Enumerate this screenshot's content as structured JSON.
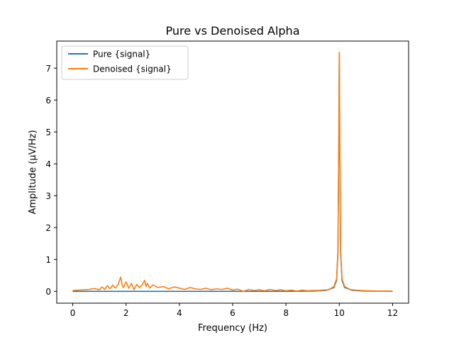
{
  "chart_data": {
    "type": "line",
    "title": "Pure vs Denoised Alpha",
    "xlabel": "Frequency (Hz)",
    "ylabel": "Amplitude (μV/Hz)",
    "xlim": [
      -0.6,
      12.6
    ],
    "ylim": [
      -0.37,
      7.85
    ],
    "xticks": [
      0,
      2,
      4,
      6,
      8,
      10,
      12
    ],
    "yticks": [
      0,
      1,
      2,
      3,
      4,
      5,
      6,
      7
    ],
    "grid": false,
    "legend": "upper left",
    "series": [
      {
        "name": "Pure {signal}",
        "color": "#1f77b4",
        "x": [
          0,
          1,
          2,
          3,
          4,
          5,
          6,
          7,
          8,
          9,
          9.5,
          9.8,
          9.9,
          9.95,
          9.98,
          10.0,
          10.02,
          10.05,
          10.1,
          10.2,
          10.5,
          11,
          12
        ],
        "y": [
          0,
          0,
          0,
          0,
          0,
          0,
          0,
          0,
          0,
          0.01,
          0.03,
          0.12,
          0.35,
          1.2,
          4.5,
          7.45,
          4.5,
          1.2,
          0.35,
          0.12,
          0.03,
          0.01,
          0
        ]
      },
      {
        "name": "Denoised {signal}",
        "color": "#ff7f0e",
        "x": [
          0,
          0.2,
          0.4,
          0.6,
          0.8,
          1.0,
          1.1,
          1.2,
          1.3,
          1.4,
          1.5,
          1.6,
          1.7,
          1.8,
          1.85,
          1.9,
          2.0,
          2.1,
          2.2,
          2.3,
          2.4,
          2.5,
          2.6,
          2.7,
          2.75,
          2.8,
          2.9,
          3.0,
          3.2,
          3.4,
          3.6,
          3.8,
          4.0,
          4.2,
          4.4,
          4.6,
          4.8,
          5.0,
          5.2,
          5.4,
          5.6,
          5.8,
          6.0,
          6.2,
          6.4,
          6.6,
          6.8,
          7.0,
          7.2,
          7.4,
          7.6,
          7.8,
          8.0,
          8.2,
          8.4,
          8.6,
          8.8,
          9.0,
          9.2,
          9.4,
          9.6,
          9.8,
          9.9,
          9.95,
          9.98,
          10.0,
          10.02,
          10.05,
          10.1,
          10.2,
          10.4,
          10.6,
          11,
          11.5,
          12
        ],
        "y": [
          0.03,
          0.04,
          0.05,
          0.06,
          0.09,
          0.05,
          0.14,
          0.06,
          0.18,
          0.08,
          0.2,
          0.1,
          0.22,
          0.45,
          0.2,
          0.12,
          0.3,
          0.1,
          0.25,
          0.05,
          0.22,
          0.12,
          0.2,
          0.35,
          0.15,
          0.25,
          0.1,
          0.2,
          0.12,
          0.15,
          0.08,
          0.14,
          0.1,
          0.06,
          0.12,
          0.08,
          0.06,
          0.1,
          0.05,
          0.08,
          0.06,
          0.1,
          0.04,
          0.07,
          0.0,
          0.06,
          0.03,
          0.05,
          0.02,
          0.06,
          0.03,
          0.05,
          0.02,
          0.04,
          0.01,
          0.04,
          0.02,
          0.03,
          0.03,
          0.04,
          0.05,
          0.15,
          0.4,
          1.3,
          4.6,
          7.5,
          4.6,
          1.3,
          0.4,
          0.15,
          0.06,
          0.04,
          0.02,
          0.01,
          0.01
        ]
      }
    ]
  }
}
